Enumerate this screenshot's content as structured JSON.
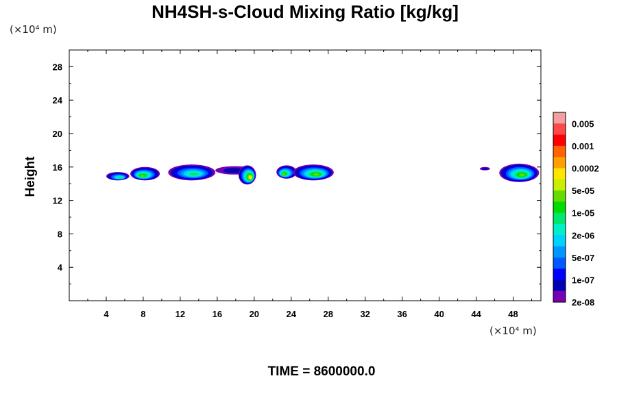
{
  "chart_data": {
    "type": "contour",
    "title": "NH4SH-s-Cloud Mixing Ratio [kg/kg]",
    "ylabel": "Height",
    "xlabel": "",
    "x_unit": "(×10⁴ m)",
    "y_unit": "(×10⁴ m)",
    "x_ticks": [
      4,
      8,
      12,
      16,
      20,
      24,
      28,
      32,
      36,
      40,
      44,
      48
    ],
    "y_ticks": [
      4,
      8,
      12,
      16,
      20,
      24,
      28
    ],
    "xlim": [
      0,
      51
    ],
    "ylim": [
      0,
      30
    ],
    "time_label": "TIME = 8600000.0",
    "colorbar": {
      "labels": [
        "0.005",
        "0.001",
        "0.0002",
        "5e-05",
        "1e-05",
        "2e-06",
        "5e-07",
        "1e-07",
        "2e-08"
      ],
      "colors": [
        "#f0a0a0",
        "#ff4848",
        "#ff0000",
        "#ff6400",
        "#ffa000",
        "#ffe600",
        "#c8f000",
        "#64dc00",
        "#00dc00",
        "#00e66e",
        "#00f0c8",
        "#00d2ff",
        "#0096ff",
        "#005aff",
        "#0000ff",
        "#0000b4",
        "#7800b4"
      ]
    },
    "cloud_regions": [
      {
        "x": [
          4.0,
          6.5
        ],
        "y": [
          14.4,
          15.4
        ],
        "peak": "1e-05"
      },
      {
        "x": [
          6.6,
          9.8
        ],
        "y": [
          14.4,
          16.0
        ],
        "peak": "5e-05"
      },
      {
        "x": [
          10.7,
          15.8
        ],
        "y": [
          14.4,
          16.3
        ],
        "peak": "1e-05"
      },
      {
        "x": [
          15.8,
          20.0
        ],
        "y": [
          15.1,
          16.1
        ],
        "peak": "1e-07"
      },
      {
        "x": [
          18.3,
          20.2
        ],
        "y": [
          13.9,
          16.2
        ],
        "peak": "0.0002"
      },
      {
        "x": [
          22.4,
          24.6
        ],
        "y": [
          14.6,
          16.2
        ],
        "peak": "5e-05"
      },
      {
        "x": [
          24.2,
          28.6
        ],
        "y": [
          14.4,
          16.3
        ],
        "peak": "5e-05"
      },
      {
        "x": [
          44.4,
          45.5
        ],
        "y": [
          15.6,
          16.0
        ],
        "peak": "1e-07"
      },
      {
        "x": [
          46.5,
          50.8
        ],
        "y": [
          14.2,
          16.4
        ],
        "peak": "5e-05"
      }
    ]
  }
}
